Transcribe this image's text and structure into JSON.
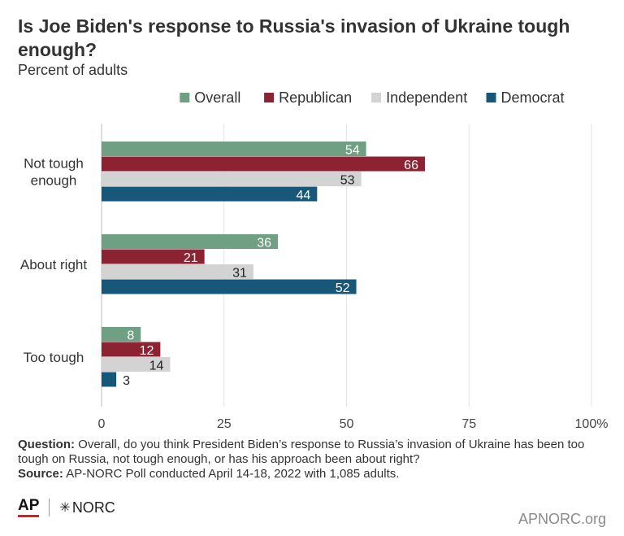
{
  "header": {
    "title": "Is Joe Biden's response to Russia's invasion of Ukraine tough enough?",
    "subtitle": "Percent of adults"
  },
  "chart_data": {
    "type": "bar",
    "orientation": "horizontal",
    "categories": [
      "Not tough enough",
      "About right",
      "Too tough"
    ],
    "series": [
      {
        "name": "Overall",
        "color": "#6fa083",
        "label_color": "#ffffff",
        "values": [
          54,
          36,
          8
        ]
      },
      {
        "name": "Republican",
        "color": "#8c2232",
        "label_color": "#ffffff",
        "values": [
          66,
          21,
          12
        ]
      },
      {
        "name": "Independent",
        "color": "#d3d3d3",
        "label_color": "#222222",
        "values": [
          53,
          31,
          14
        ]
      },
      {
        "name": "Democrat",
        "color": "#17587a",
        "label_color": "#ffffff",
        "values": [
          44,
          52,
          3
        ]
      }
    ],
    "xlim": [
      0,
      100
    ],
    "ticks": [
      0,
      25,
      50,
      75,
      100
    ],
    "tick_labels": [
      "0",
      "25",
      "50",
      "75",
      "100%"
    ],
    "grid": true,
    "legend": "top"
  },
  "footer": {
    "question_label": "Question:",
    "question_text": "Overall, do you think President Biden’s response to Russia’s invasion of Ukraine has been too tough on Russia, not tough enough, or has his approach been about right?",
    "source_label": "Source:",
    "source_text": "AP-NORC Poll conducted April 14-18, 2022 with 1,085 adults.",
    "ap_logo": "AP",
    "norc_logo": "NORC",
    "site": "APNORC.org"
  }
}
